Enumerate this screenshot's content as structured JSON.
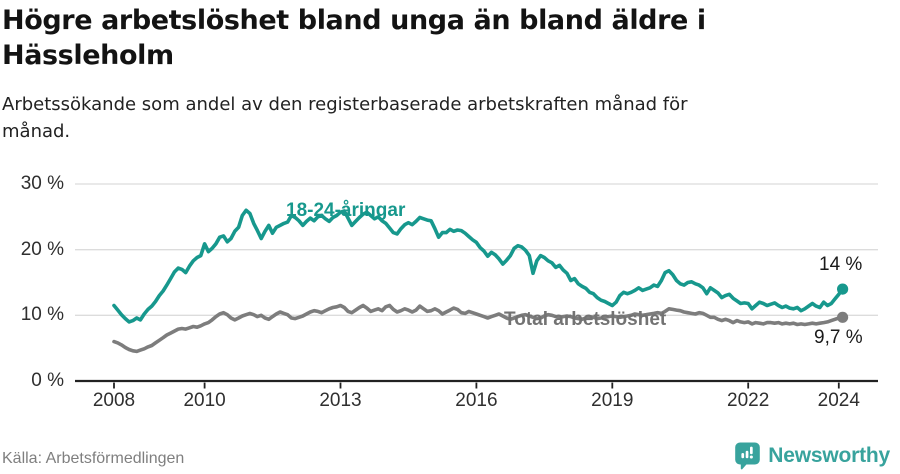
{
  "header": {
    "title": "Högre arbetslöshet bland unga än bland äldre i Hässleholm",
    "title_line1": "Högre arbetslöshet bland unga än bland äldre i",
    "title_line2": "Hässleholm",
    "subtitle": "Arbetssökande som andel av den registerbaserade arbetskraften månad för månad.",
    "subtitle_line1": "Arbetssökande som andel av den registerbaserade arbetskraften månad för",
    "subtitle_line2": "månad."
  },
  "footer": {
    "source": "Källa: Arbetsförmedlingen",
    "brand": "Newsworthy",
    "brand_icon": "newsworthy-speech-bubble-bar-chart-icon"
  },
  "colors": {
    "young_line": "#17988d",
    "total_line": "#7d7d7d",
    "total_label": "#737373",
    "end_label_text": "#1a1a1a",
    "axis_text": "#2f2f2f",
    "grid": "#dcdcdc",
    "axis_line": "#222222",
    "source_text": "#7f7f7f",
    "brand_teal": "#38a39d",
    "background": "#ffffff"
  },
  "chart_data": {
    "type": "line",
    "title": "Högre arbetslöshet bland unga än bland äldre i Hässleholm",
    "subtitle": "Arbetssökande som andel av den registerbaserade arbetskraften månad för månad.",
    "xlabel": "",
    "ylabel": "",
    "unit": "%",
    "frequency": "monthly",
    "x_start": "2008-01",
    "x_end": "2024-02",
    "ylim": [
      0,
      30
    ],
    "grid": true,
    "legend_position": "inline-labels",
    "x_ticks": [
      {
        "label": "2008",
        "year": 2008
      },
      {
        "label": "2010",
        "year": 2010
      },
      {
        "label": "2013",
        "year": 2013
      },
      {
        "label": "2016",
        "year": 2016
      },
      {
        "label": "2019",
        "year": 2019
      },
      {
        "label": "2022",
        "year": 2022
      },
      {
        "label": "2024",
        "year": 2024
      }
    ],
    "y_ticks": [
      {
        "label": "0 %",
        "value": 0
      },
      {
        "label": "10 %",
        "value": 10
      },
      {
        "label": "20 %",
        "value": 20
      },
      {
        "label": "30 %",
        "value": 30
      }
    ],
    "series": [
      {
        "name": "18-24-åringar",
        "color": "#17988d",
        "end_label": "14 %",
        "end_value": 14.0,
        "values": [
          11.5,
          10.8,
          10.1,
          9.5,
          9.0,
          9.2,
          9.6,
          9.3,
          10.2,
          10.9,
          11.4,
          12.1,
          13.0,
          13.7,
          14.6,
          15.6,
          16.6,
          17.2,
          17.0,
          16.5,
          17.5,
          18.3,
          18.8,
          19.1,
          20.9,
          19.7,
          20.2,
          20.9,
          21.9,
          22.1,
          21.2,
          21.7,
          22.8,
          23.4,
          25.2,
          26.0,
          25.5,
          24.0,
          22.9,
          21.7,
          22.8,
          23.7,
          22.5,
          23.4,
          23.7,
          24.0,
          24.2,
          25.2,
          24.9,
          24.4,
          23.7,
          24.3,
          24.8,
          24.4,
          25.0,
          25.2,
          24.7,
          24.3,
          24.9,
          25.2,
          25.7,
          25.9,
          24.8,
          23.7,
          24.3,
          24.9,
          25.4,
          25.7,
          25.2,
          24.7,
          25.0,
          24.4,
          24.0,
          23.3,
          22.6,
          22.4,
          23.2,
          23.8,
          24.1,
          23.8,
          24.3,
          24.9,
          24.7,
          24.5,
          24.4,
          23.2,
          21.9,
          22.6,
          22.6,
          23.1,
          22.8,
          23.0,
          22.9,
          22.5,
          22.0,
          21.5,
          21.1,
          20.3,
          19.8,
          19.0,
          19.6,
          19.2,
          18.6,
          17.8,
          18.4,
          19.1,
          20.2,
          20.6,
          20.4,
          19.9,
          19.1,
          16.4,
          18.3,
          19.1,
          18.8,
          18.3,
          18.0,
          17.3,
          17.6,
          16.9,
          16.4,
          15.3,
          15.6,
          14.8,
          14.4,
          14.1,
          13.5,
          13.3,
          12.7,
          12.3,
          12.1,
          11.8,
          11.5,
          12.0,
          13.0,
          13.5,
          13.3,
          13.5,
          13.8,
          14.2,
          13.8,
          14.0,
          14.2,
          14.6,
          14.4,
          15.3,
          16.5,
          16.8,
          16.2,
          15.3,
          14.8,
          14.6,
          15.0,
          15.1,
          14.8,
          14.6,
          14.2,
          13.3,
          14.2,
          13.8,
          13.4,
          12.7,
          13.0,
          13.2,
          12.6,
          12.2,
          11.8,
          11.9,
          11.8,
          11.0,
          11.5,
          12.0,
          11.8,
          11.5,
          11.7,
          11.9,
          11.5,
          11.2,
          11.4,
          11.1,
          11.0,
          11.2,
          10.7,
          11.0,
          11.4,
          11.8,
          11.4,
          11.2,
          12.0,
          11.5,
          11.8,
          12.5,
          13.2,
          14.0
        ]
      },
      {
        "name": "Total arbetslöshet",
        "color": "#7d7d7d",
        "end_label": "9,7 %",
        "end_value": 9.7,
        "values": [
          6.0,
          5.8,
          5.5,
          5.1,
          4.8,
          4.6,
          4.5,
          4.7,
          4.9,
          5.2,
          5.4,
          5.8,
          6.2,
          6.6,
          7.0,
          7.3,
          7.6,
          7.9,
          8.0,
          7.9,
          8.1,
          8.3,
          8.2,
          8.4,
          8.7,
          8.9,
          9.3,
          9.8,
          10.2,
          10.4,
          10.1,
          9.6,
          9.3,
          9.6,
          9.9,
          10.1,
          10.3,
          10.1,
          9.8,
          10.0,
          9.6,
          9.4,
          9.8,
          10.2,
          10.5,
          10.3,
          10.1,
          9.6,
          9.5,
          9.7,
          9.9,
          10.2,
          10.5,
          10.7,
          10.6,
          10.4,
          10.7,
          11.0,
          11.2,
          11.3,
          11.5,
          11.2,
          10.6,
          10.4,
          10.8,
          11.2,
          11.5,
          11.1,
          10.6,
          10.8,
          11.0,
          10.7,
          11.3,
          11.5,
          10.9,
          10.5,
          10.7,
          11.0,
          10.8,
          10.5,
          10.8,
          11.4,
          11.0,
          10.6,
          10.7,
          11.0,
          10.7,
          10.2,
          10.5,
          10.8,
          11.1,
          10.9,
          10.4,
          10.3,
          10.6,
          10.4,
          10.2,
          10.0,
          9.8,
          9.6,
          9.8,
          10.0,
          10.2,
          9.9,
          9.6,
          9.4,
          9.6,
          9.8,
          10.0,
          10.1,
          9.9,
          9.7,
          9.5,
          9.6,
          9.9,
          10.1,
          10.0,
          9.8,
          9.7,
          9.8,
          9.9,
          9.8,
          9.6,
          9.5,
          9.4,
          9.6,
          9.8,
          9.7,
          9.5,
          9.6,
          9.7,
          9.8,
          9.9,
          9.8,
          9.7,
          9.8,
          9.9,
          10.0,
          10.2,
          10.1,
          10.0,
          10.1,
          10.2,
          10.3,
          10.4,
          10.3,
          10.6,
          11.0,
          10.9,
          10.8,
          10.7,
          10.5,
          10.4,
          10.3,
          10.2,
          10.4,
          10.3,
          10.0,
          9.7,
          9.7,
          9.4,
          9.2,
          9.4,
          9.2,
          8.9,
          9.2,
          9.0,
          8.9,
          9.0,
          8.7,
          8.9,
          8.8,
          8.7,
          8.9,
          8.9,
          8.8,
          8.9,
          8.7,
          8.8,
          8.7,
          8.8,
          8.6,
          8.7,
          8.6,
          8.7,
          8.8,
          8.7,
          8.8,
          8.9,
          9.0,
          9.2,
          9.4,
          9.6,
          9.7
        ]
      }
    ]
  }
}
